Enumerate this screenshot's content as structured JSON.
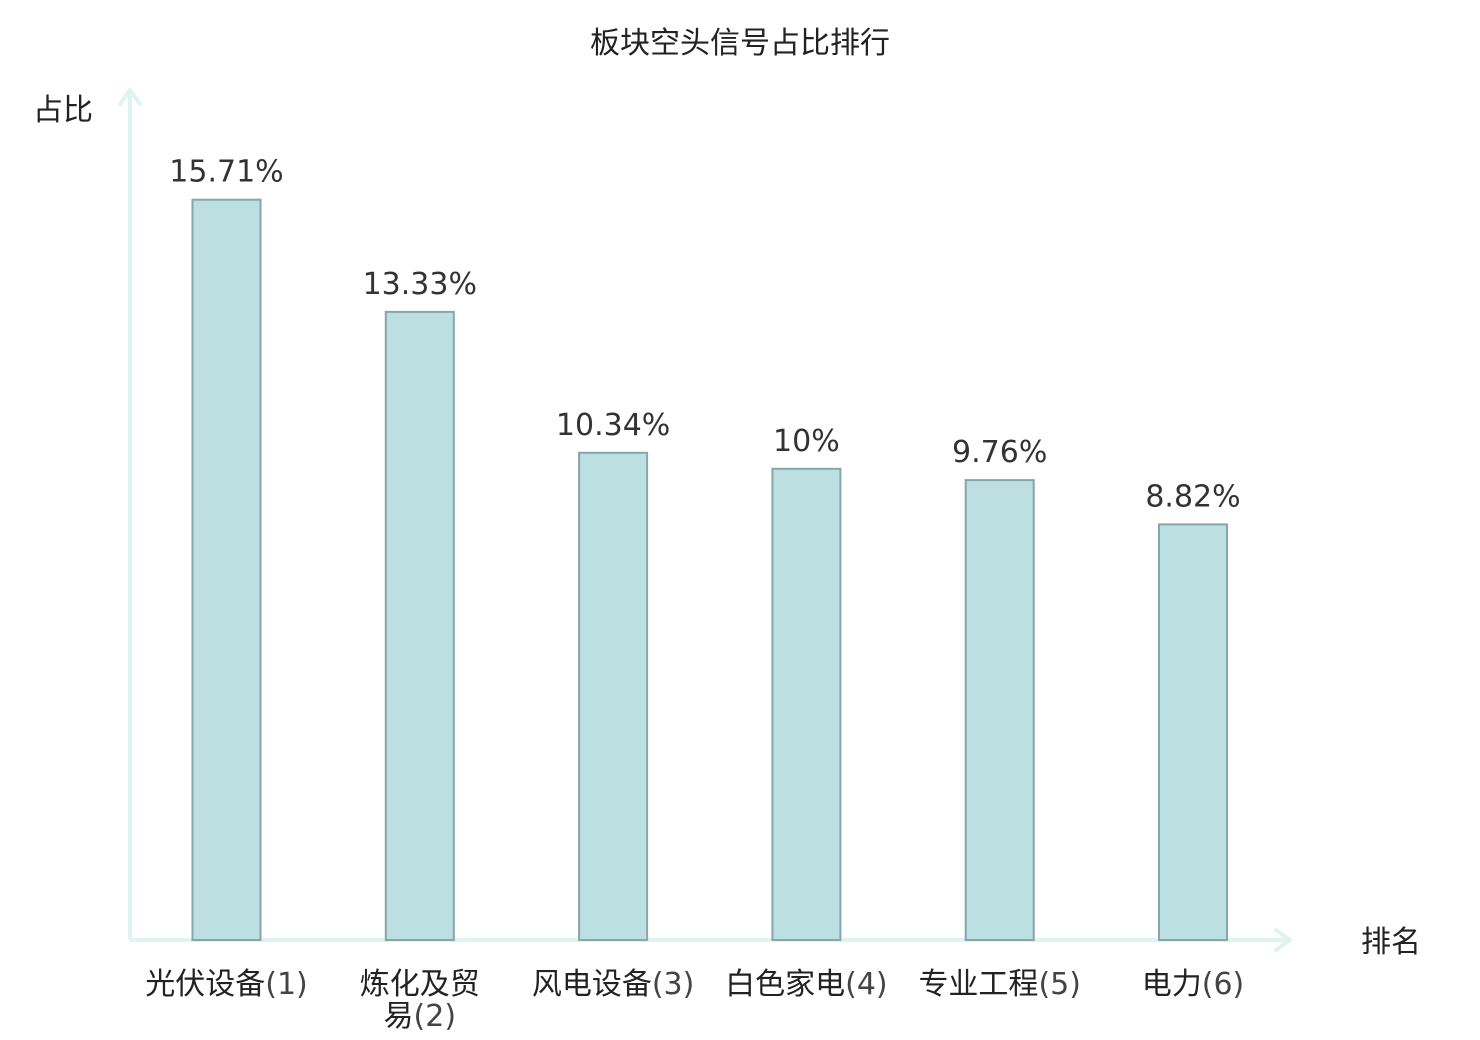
{
  "chart_data": {
    "type": "bar",
    "title": "板块空头信号占比排行",
    "ylabel": "占比",
    "xlabel": "排名",
    "categories": [
      "光伏设备(1)",
      "炼化及贸易(2)",
      "风电设备(3)",
      "白色家电(4)",
      "专业工程(5)",
      "电力(6)"
    ],
    "category_names": [
      "光伏设备",
      "炼化及贸易",
      "风电设备",
      "白色家电",
      "专业工程",
      "电力"
    ],
    "ranks": [
      "(1)",
      "(2)",
      "(3)",
      "(4)",
      "(5)",
      "(6)"
    ],
    "values": [
      15.71,
      13.33,
      10.34,
      10,
      9.76,
      8.82
    ],
    "value_labels": [
      "15.71%",
      "13.33%",
      "10.34%",
      "10%",
      "9.76%",
      "8.82%"
    ],
    "ylim": [
      0,
      17.5
    ],
    "grid": false,
    "legend": "none",
    "highlight_index": 5
  },
  "colors": {
    "bar_fill": "#bce0e2",
    "bar_stroke": "#86a6aa",
    "axis": "#dff3f0",
    "highlight_text": "#e0191b",
    "text": "#222222"
  }
}
